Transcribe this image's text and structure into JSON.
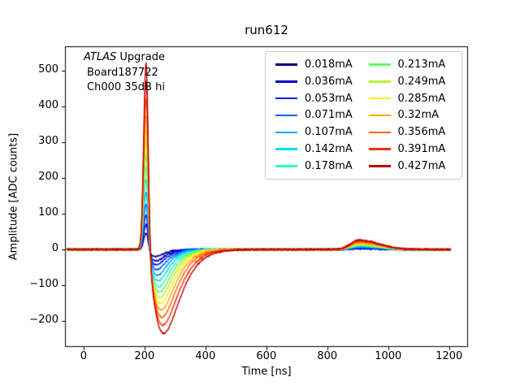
{
  "chart_data": {
    "type": "line",
    "title": "run612",
    "xlabel": "Time [ns]",
    "ylabel": "Amplitude [ADC counts]",
    "xlim": [
      -61,
      1262
    ],
    "ylim": [
      -272,
      567
    ],
    "xticks": [
      0,
      200,
      400,
      600,
      800,
      1000,
      1200
    ],
    "yticks": [
      -200,
      -100,
      0,
      100,
      200,
      300,
      400,
      500
    ],
    "grid": false,
    "legend_position": "upper right",
    "legend_columns": 2,
    "series": [
      {
        "label": "0.018mA",
        "color": "#000080",
        "peak_adc": 45,
        "undershoot_min_adc": -20,
        "bump_peak_adc": 2
      },
      {
        "label": "0.036mA",
        "color": "#0000cc",
        "peak_adc": 70,
        "undershoot_min_adc": -32,
        "bump_peak_adc": 4
      },
      {
        "label": "0.053mA",
        "color": "#0014ff",
        "peak_adc": 95,
        "undershoot_min_adc": -43,
        "bump_peak_adc": 5
      },
      {
        "label": "0.071mA",
        "color": "#0064ff",
        "peak_adc": 125,
        "undershoot_min_adc": -56,
        "bump_peak_adc": 6
      },
      {
        "label": "0.107mA",
        "color": "#00a4ff",
        "peak_adc": 160,
        "undershoot_min_adc": -72,
        "bump_peak_adc": 8
      },
      {
        "label": "0.142mA",
        "color": "#00e0f0",
        "peak_adc": 195,
        "undershoot_min_adc": -88,
        "bump_peak_adc": 10
      },
      {
        "label": "0.178mA",
        "color": "#2effc0",
        "peak_adc": 230,
        "undershoot_min_adc": -104,
        "bump_peak_adc": 12
      },
      {
        "label": "0.213mA",
        "color": "#5eff5e",
        "peak_adc": 265,
        "undershoot_min_adc": -119,
        "bump_peak_adc": 13
      },
      {
        "label": "0.249mA",
        "color": "#b8f52e",
        "peak_adc": 300,
        "undershoot_min_adc": -135,
        "bump_peak_adc": 15
      },
      {
        "label": "0.285mA",
        "color": "#ffee00",
        "peak_adc": 335,
        "undershoot_min_adc": -151,
        "bump_peak_adc": 17
      },
      {
        "label": "0.32mA",
        "color": "#ffa600",
        "peak_adc": 375,
        "undershoot_min_adc": -169,
        "bump_peak_adc": 19
      },
      {
        "label": "0.356mA",
        "color": "#ff6300",
        "peak_adc": 420,
        "undershoot_min_adc": -189,
        "bump_peak_adc": 21
      },
      {
        "label": "0.391mA",
        "color": "#f62d00",
        "peak_adc": 470,
        "undershoot_min_adc": -212,
        "bump_peak_adc": 24
      },
      {
        "label": "0.427mA",
        "color": "#c00000",
        "peak_adc": 520,
        "undershoot_min_adc": -234,
        "bump_peak_adc": 26
      }
    ],
    "waveform_model": {
      "t_start_ns": -55,
      "t_end_ns": 1205,
      "baseline_adc": 0,
      "peak_time_ns": 205,
      "peak_rise_sigma_ns": 7.5,
      "peak_fall_sigma_ns": 7,
      "undershoot_start_ns": 205,
      "undershoot_depth_frac": 0.45,
      "undershoot_tau_base_ns": 14,
      "undershoot_tau_scale_ns": 15,
      "bump_time_ns": 905,
      "bump_rise_sigma_ns": 28,
      "bump_fall_sigma_ns": 65,
      "bump_frac": 0.05,
      "noise_sd_adc": 1.2
    }
  },
  "annotation": {
    "experiment": "ATLAS",
    "line1_rest": " Upgrade",
    "line2": "Board187722",
    "line3": "Ch000 35dB hi"
  },
  "colors": {
    "background": "#ffffff",
    "axes": "#000000",
    "legend_border": "#c9c9c9",
    "text": "#000000"
  }
}
